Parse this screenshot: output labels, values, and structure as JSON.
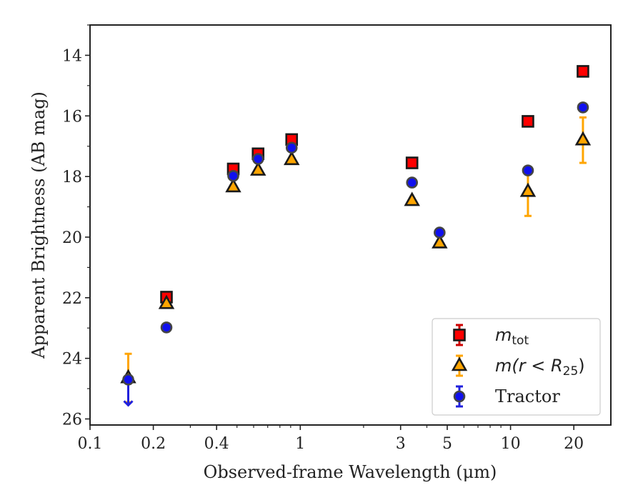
{
  "chart_data": {
    "type": "scatter",
    "xscale": "log",
    "xlim": [
      0.1,
      30
    ],
    "ylim": [
      26.2,
      13
    ],
    "y_inverted": true,
    "xlabel": "Observed-frame Wavelength (μm)",
    "ylabel": "Apparent Brightness (AB mag)",
    "x_ticks": [
      {
        "value": 0.1,
        "label": "0.1"
      },
      {
        "value": 0.2,
        "label": "0.2"
      },
      {
        "value": 0.4,
        "label": "0.4"
      },
      {
        "value": 1,
        "label": "1"
      },
      {
        "value": 3,
        "label": "3"
      },
      {
        "value": 5,
        "label": "5"
      },
      {
        "value": 10,
        "label": "10"
      },
      {
        "value": 20,
        "label": "20"
      }
    ],
    "y_ticks": [
      {
        "value": 14,
        "label": "14"
      },
      {
        "value": 16,
        "label": "16"
      },
      {
        "value": 18,
        "label": "18"
      },
      {
        "value": 20,
        "label": "20"
      },
      {
        "value": 22,
        "label": "22"
      },
      {
        "value": 24,
        "label": "24"
      },
      {
        "value": 26,
        "label": "26"
      }
    ],
    "grid": false,
    "legend_position": "lower-right",
    "series": [
      {
        "key": "m_tot",
        "label_main": "m",
        "label_sub": "tot",
        "marker": "square",
        "fill": "#ff0000",
        "edge": "#1a1a1a",
        "errcolor": "#cc0000",
        "points": [
          {
            "x": 0.231,
            "y": 21.98,
            "err": 0.1
          },
          {
            "x": 0.48,
            "y": 17.75,
            "err": 0.06
          },
          {
            "x": 0.63,
            "y": 17.25,
            "err": 0.05
          },
          {
            "x": 0.91,
            "y": 16.78,
            "err": 0.05
          },
          {
            "x": 3.4,
            "y": 17.55,
            "err": 0.05
          },
          {
            "x": 12.1,
            "y": 16.18,
            "err": 0.06
          },
          {
            "x": 22.1,
            "y": 14.53,
            "err": 0.06
          }
        ]
      },
      {
        "key": "m_r25",
        "label_main": "m(r < R",
        "label_sub": "25",
        "label_end": ")",
        "marker": "triangle",
        "fill": "#ffa500",
        "edge": "#1a1a1a",
        "errcolor": "#ffa500",
        "points": [
          {
            "x": 0.152,
            "y": 24.65,
            "err": 0.8
          },
          {
            "x": 0.231,
            "y": 22.2,
            "err": 0.1
          },
          {
            "x": 0.48,
            "y": 18.35,
            "err": 0.06
          },
          {
            "x": 0.63,
            "y": 17.8,
            "err": 0.05
          },
          {
            "x": 0.91,
            "y": 17.45,
            "err": 0.05
          },
          {
            "x": 3.4,
            "y": 18.8,
            "err": 0.05
          },
          {
            "x": 4.6,
            "y": 20.2,
            "err": 0.06
          },
          {
            "x": 12.1,
            "y": 18.5,
            "err": 0.8
          },
          {
            "x": 22.1,
            "y": 16.8,
            "err": 0.75
          }
        ]
      },
      {
        "key": "tractor",
        "label_main": "Tractor",
        "marker": "circle",
        "fill": "#1010ee",
        "edge": "#444444",
        "errcolor": "#2020dd",
        "points": [
          {
            "x": 0.152,
            "y": 24.7,
            "err": 0,
            "upper_limit": true
          },
          {
            "x": 0.231,
            "y": 22.98,
            "err": 0.04
          },
          {
            "x": 0.48,
            "y": 17.98,
            "err": 0.04
          },
          {
            "x": 0.63,
            "y": 17.42,
            "err": 0.04
          },
          {
            "x": 0.91,
            "y": 17.05,
            "err": 0.04
          },
          {
            "x": 3.4,
            "y": 18.2,
            "err": 0.04
          },
          {
            "x": 4.6,
            "y": 19.85,
            "err": 0.04
          },
          {
            "x": 12.1,
            "y": 17.8,
            "err": 0.04
          },
          {
            "x": 22.1,
            "y": 15.72,
            "err": 0.04
          }
        ]
      }
    ]
  }
}
